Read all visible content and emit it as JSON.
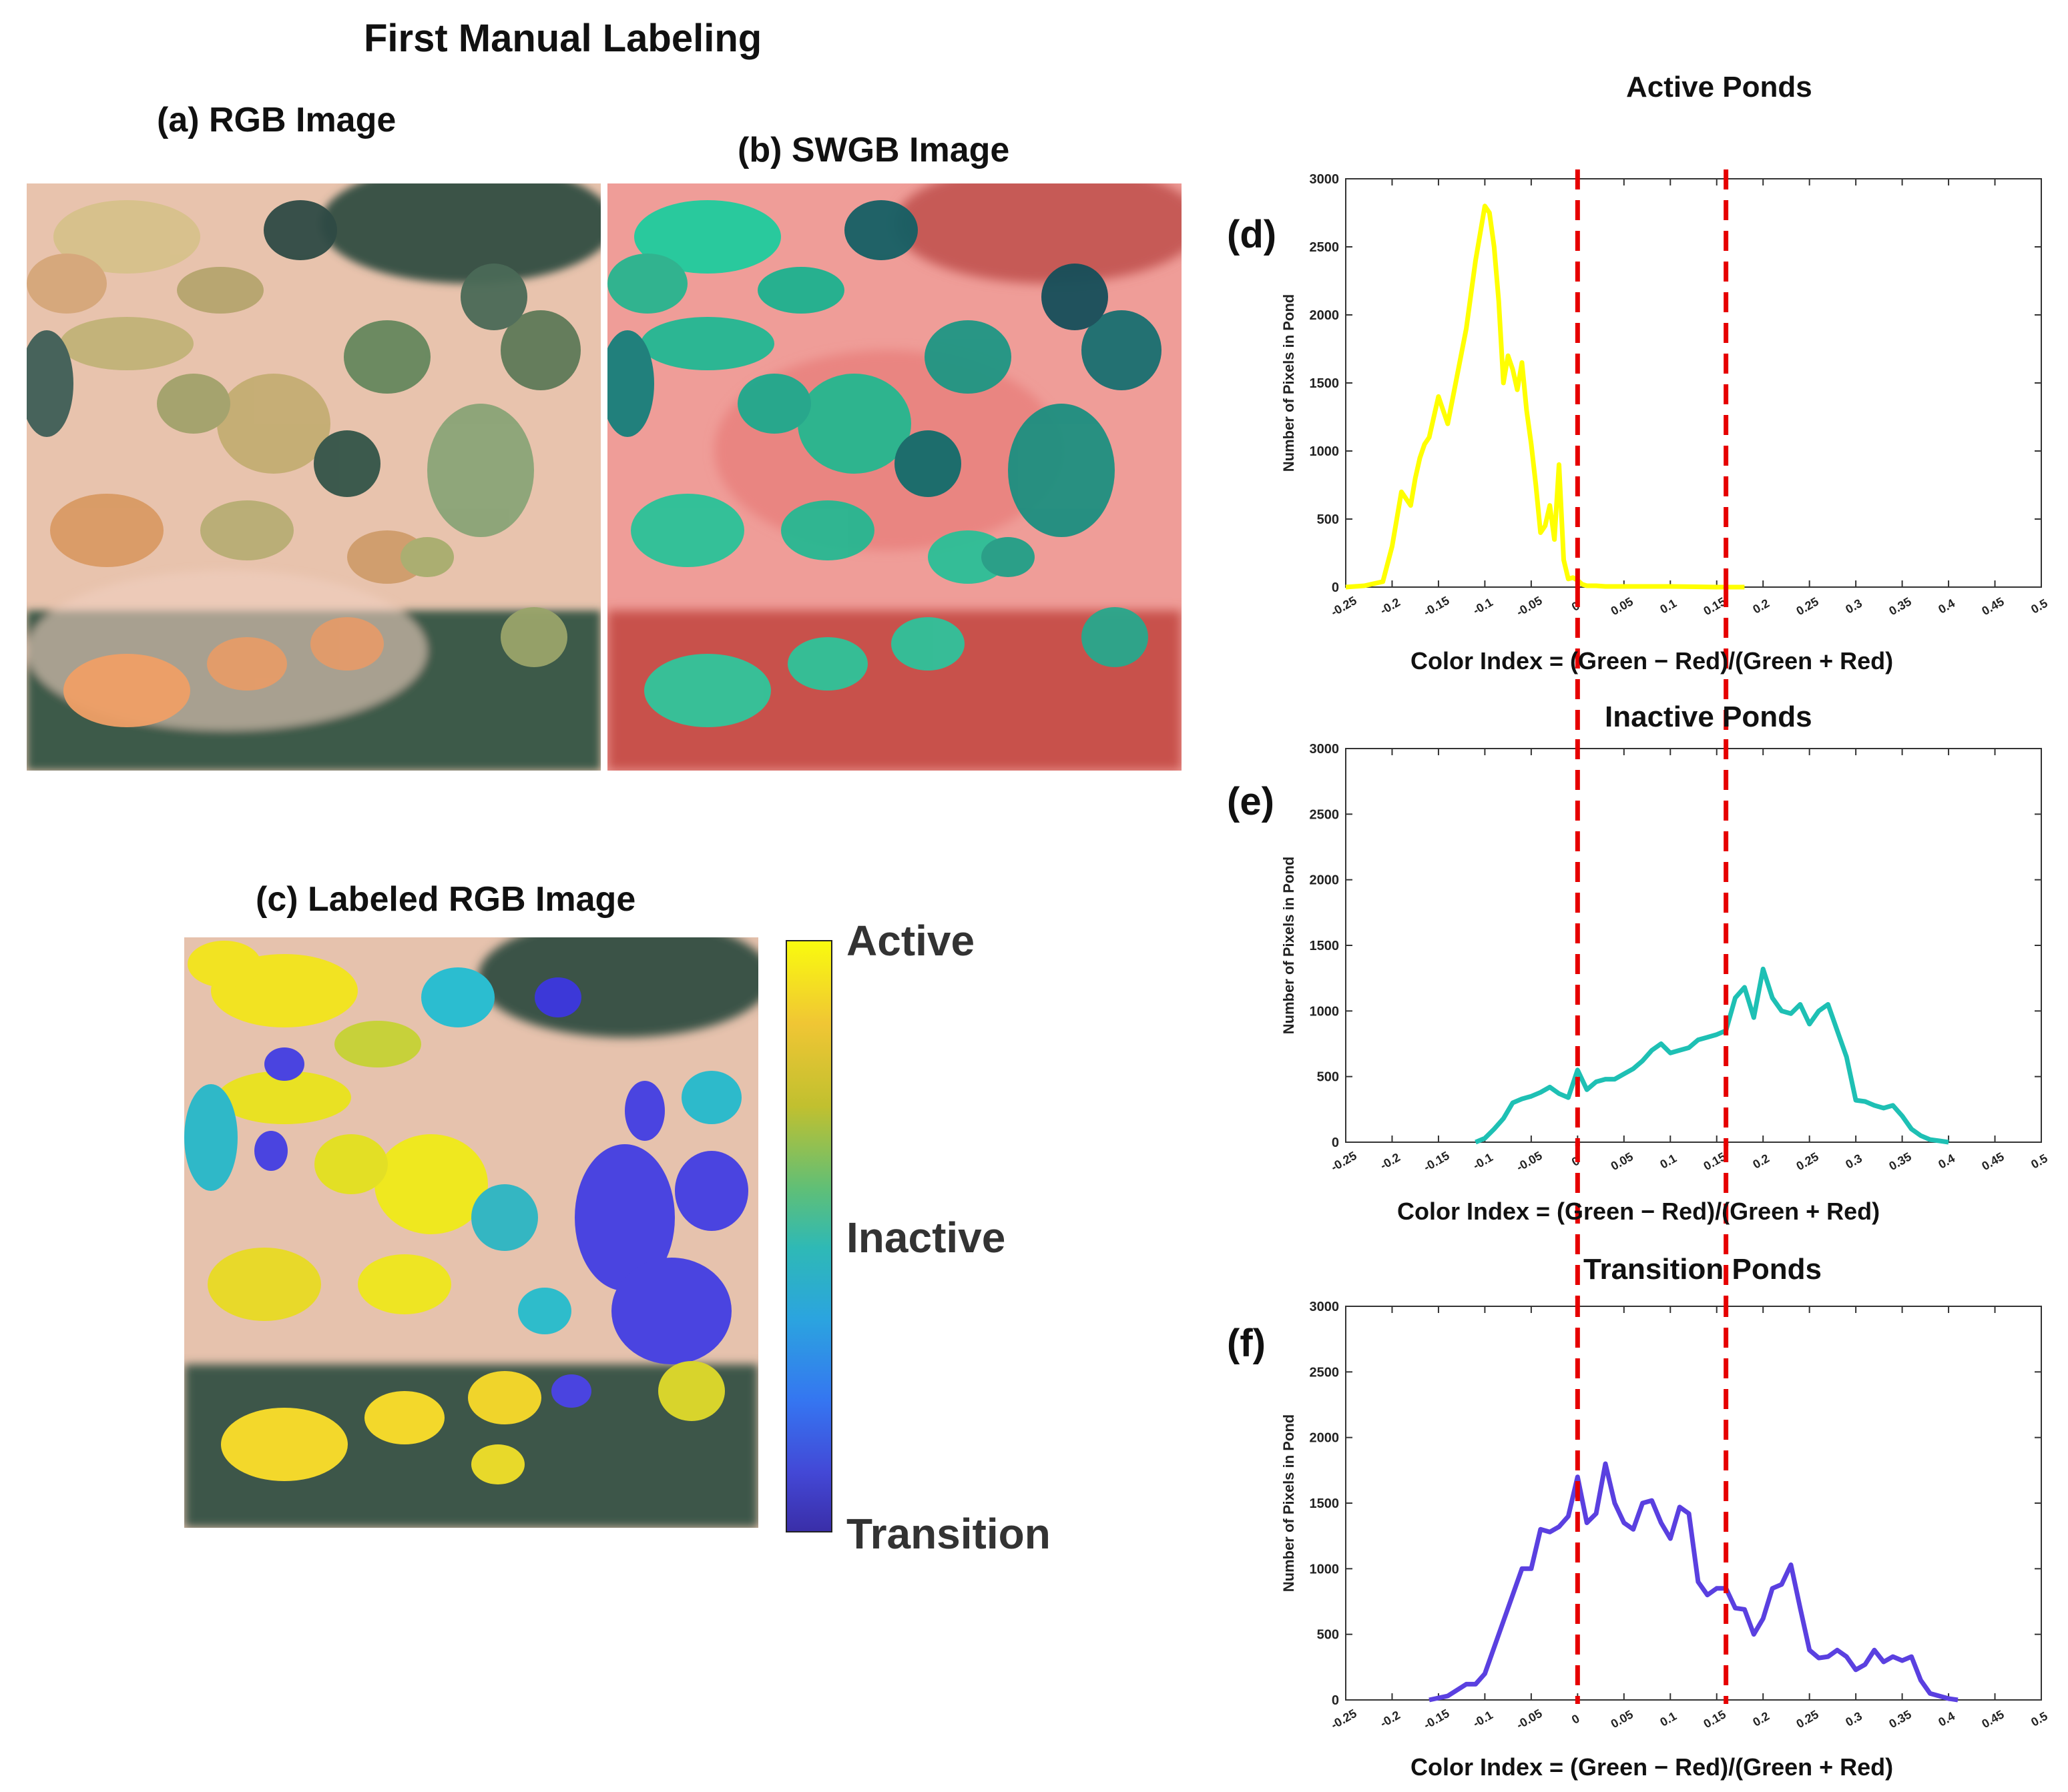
{
  "figure": {
    "title": "First Manual  Labeling",
    "panel_a": {
      "title": "(a) RGB Image"
    },
    "panel_b": {
      "title": "(b) SWGB Image"
    },
    "panel_c": {
      "title": "(c) Labeled RGB Image"
    },
    "colorbar": {
      "labels": [
        "Active",
        "Inactive",
        "Transition"
      ],
      "colors": [
        "#f9fb0e",
        "#e4c12a",
        "#a5c33b",
        "#3cbc9c",
        "#2db9c4",
        "#2a8df0",
        "#4a5ae6",
        "#3b2fab"
      ]
    },
    "colors": {
      "active": "#ffff00",
      "inactive": "#1ec0b4",
      "transition": "#5a40e0",
      "threshold": "#e60000"
    }
  },
  "chart_data": [
    {
      "type": "line",
      "panel": "(d)",
      "title": "Active Ponds",
      "xlabel": "Color Index = (Green − Red)/(Green + Red)",
      "ylabel": "Number of Pixels in Pond",
      "xlim": [
        -0.25,
        0.5
      ],
      "ylim": [
        0,
        3000
      ],
      "xticks": [
        "-0.25",
        "-0.2",
        "-0.15",
        "-0.1",
        "-0.05",
        "0",
        "0.05",
        "0.1",
        "0.15",
        "0.2",
        "0.25",
        "0.3",
        "0.35",
        "0.4",
        "0.45",
        "0.5"
      ],
      "yticks": [
        "0",
        "500",
        "1000",
        "1500",
        "2000",
        "2500",
        "3000"
      ],
      "thresholds": [
        0,
        0.16
      ],
      "series": [
        {
          "name": "Active",
          "color": "#ffff00",
          "x": [
            -0.25,
            -0.23,
            -0.21,
            -0.2,
            -0.19,
            -0.18,
            -0.175,
            -0.17,
            -0.165,
            -0.16,
            -0.15,
            -0.14,
            -0.13,
            -0.12,
            -0.11,
            -0.1,
            -0.095,
            -0.09,
            -0.085,
            -0.08,
            -0.075,
            -0.07,
            -0.065,
            -0.06,
            -0.055,
            -0.05,
            -0.045,
            -0.04,
            -0.035,
            -0.03,
            -0.025,
            -0.02,
            -0.015,
            -0.01,
            -0.005,
            0,
            0.005,
            0.01,
            0.02,
            0.03,
            0.05,
            0.1,
            0.15,
            0.18
          ],
          "values": [
            0,
            10,
            40,
            300,
            700,
            600,
            800,
            950,
            1050,
            1100,
            1400,
            1200,
            1550,
            1900,
            2400,
            2800,
            2750,
            2500,
            2100,
            1500,
            1700,
            1600,
            1450,
            1650,
            1300,
            1050,
            750,
            400,
            450,
            600,
            350,
            900,
            200,
            60,
            70,
            50,
            20,
            10,
            10,
            5,
            5,
            5,
            0,
            0
          ]
        }
      ]
    },
    {
      "type": "line",
      "panel": "(e)",
      "title": "Inactive Ponds",
      "xlabel": "Color Index = (Green − Red)/(Green + Red)",
      "ylabel": "Number of Pixels in Pond",
      "xlim": [
        -0.25,
        0.5
      ],
      "ylim": [
        0,
        3000
      ],
      "xticks": [
        "-0.25",
        "-0.2",
        "-0.15",
        "-0.1",
        "-0.05",
        "0",
        "0.05",
        "0.1",
        "0.15",
        "0.2",
        "0.25",
        "0.3",
        "0.35",
        "0.4",
        "0.45",
        "0.5"
      ],
      "yticks": [
        "0",
        "500",
        "1000",
        "1500",
        "2000",
        "2500",
        "3000"
      ],
      "thresholds": [
        0,
        0.16
      ],
      "series": [
        {
          "name": "Inactive",
          "color": "#1ec0b4",
          "x": [
            -0.11,
            -0.1,
            -0.09,
            -0.08,
            -0.07,
            -0.06,
            -0.05,
            -0.04,
            -0.03,
            -0.02,
            -0.01,
            0,
            0.01,
            0.02,
            0.03,
            0.04,
            0.05,
            0.06,
            0.07,
            0.08,
            0.09,
            0.1,
            0.11,
            0.12,
            0.13,
            0.14,
            0.15,
            0.16,
            0.17,
            0.18,
            0.19,
            0.2,
            0.21,
            0.22,
            0.23,
            0.24,
            0.25,
            0.26,
            0.27,
            0.28,
            0.29,
            0.3,
            0.31,
            0.32,
            0.33,
            0.34,
            0.35,
            0.36,
            0.37,
            0.38,
            0.39,
            0.4
          ],
          "values": [
            0,
            30,
            100,
            180,
            300,
            330,
            350,
            380,
            420,
            370,
            340,
            550,
            400,
            460,
            480,
            480,
            520,
            560,
            620,
            700,
            750,
            680,
            700,
            720,
            780,
            800,
            820,
            850,
            1100,
            1180,
            950,
            1320,
            1100,
            1000,
            980,
            1050,
            900,
            1000,
            1050,
            850,
            650,
            320,
            310,
            280,
            260,
            280,
            200,
            100,
            50,
            20,
            10,
            0
          ]
        }
      ]
    },
    {
      "type": "line",
      "panel": "(f)",
      "title": "Transition Ponds",
      "xlabel": "Color Index = (Green − Red)/(Green + Red)",
      "ylabel": "Number of Pixels in Pond",
      "xlim": [
        -0.25,
        0.5
      ],
      "ylim": [
        0,
        3000
      ],
      "xticks": [
        "-0.25",
        "-0.2",
        "-0.15",
        "-0.1",
        "-0.05",
        "0",
        "0.05",
        "0.1",
        "0.15",
        "0.2",
        "0.25",
        "0.3",
        "0.35",
        "0.4",
        "0.45",
        "0.5"
      ],
      "yticks": [
        "0",
        "500",
        "1000",
        "1500",
        "2000",
        "2500",
        "3000"
      ],
      "thresholds": [
        0,
        0.16
      ],
      "series": [
        {
          "name": "Transition",
          "color": "#5a40e0",
          "x": [
            -0.16,
            -0.14,
            -0.12,
            -0.11,
            -0.1,
            -0.09,
            -0.08,
            -0.07,
            -0.06,
            -0.05,
            -0.04,
            -0.03,
            -0.02,
            -0.01,
            0,
            0.01,
            0.02,
            0.03,
            0.04,
            0.05,
            0.06,
            0.07,
            0.08,
            0.09,
            0.1,
            0.11,
            0.12,
            0.13,
            0.14,
            0.15,
            0.16,
            0.17,
            0.18,
            0.19,
            0.2,
            0.21,
            0.22,
            0.23,
            0.24,
            0.25,
            0.26,
            0.27,
            0.28,
            0.29,
            0.3,
            0.31,
            0.32,
            0.33,
            0.34,
            0.35,
            0.36,
            0.37,
            0.38,
            0.39,
            0.4,
            0.41
          ],
          "values": [
            0,
            30,
            120,
            120,
            200,
            400,
            600,
            800,
            1000,
            1000,
            1300,
            1280,
            1320,
            1400,
            1700,
            1350,
            1420,
            1800,
            1500,
            1350,
            1300,
            1500,
            1520,
            1350,
            1230,
            1470,
            1420,
            900,
            800,
            850,
            850,
            700,
            690,
            500,
            620,
            850,
            880,
            1030,
            700,
            380,
            320,
            330,
            380,
            330,
            230,
            270,
            380,
            290,
            330,
            300,
            330,
            150,
            50,
            30,
            10,
            0
          ]
        }
      ]
    }
  ]
}
